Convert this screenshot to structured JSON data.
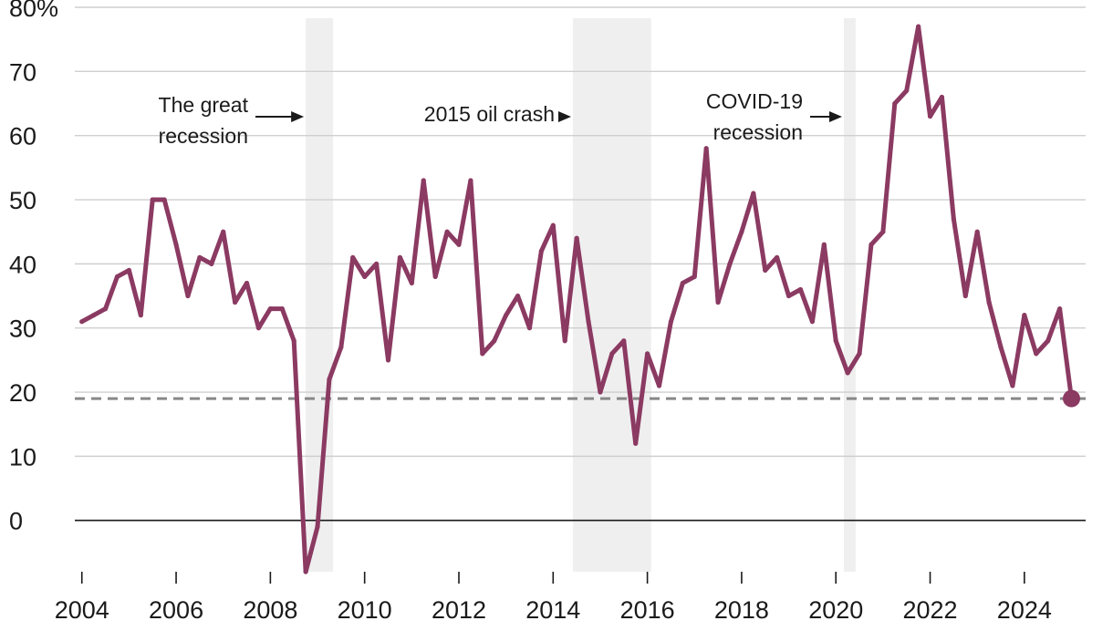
{
  "chart_data": {
    "type": "line",
    "title": "",
    "xlabel": "",
    "ylabel": "",
    "unit_suffix": "%",
    "xlim": [
      2003.85,
      2025.3
    ],
    "ylim": [
      -8,
      80
    ],
    "x_ticks": [
      2004,
      2006,
      2008,
      2010,
      2012,
      2014,
      2016,
      2018,
      2020,
      2022,
      2024
    ],
    "x_tick_labels": [
      "2004",
      "2006",
      "2008",
      "2010",
      "2012",
      "2014",
      "2016",
      "2018",
      "2020",
      "2022",
      "2024"
    ],
    "y_ticks": [
      0,
      10,
      20,
      30,
      40,
      50,
      60,
      70,
      80
    ],
    "y_tick_labels": [
      "0",
      "10",
      "20",
      "30",
      "40",
      "50",
      "60",
      "70",
      "80%"
    ],
    "grid": true,
    "reference_line": {
      "value": 19,
      "style": "dashed",
      "color": "#888888"
    },
    "recessions": [
      {
        "start": 2008.75,
        "end": 2009.33,
        "label_lines": [
          "The great",
          "recession"
        ]
      },
      {
        "start": 2014.42,
        "end": 2016.08,
        "label_lines": [
          "2015 oil crash"
        ]
      },
      {
        "start": 2020.17,
        "end": 2020.42,
        "label_lines": [
          "COVID-19",
          "recession"
        ]
      }
    ],
    "series": [
      {
        "name": "",
        "color": "#8b3a62",
        "points": [
          [
            2004.0,
            31
          ],
          [
            2004.25,
            32
          ],
          [
            2004.5,
            33
          ],
          [
            2004.75,
            38
          ],
          [
            2005.0,
            39
          ],
          [
            2005.25,
            32
          ],
          [
            2005.5,
            50
          ],
          [
            2005.75,
            50
          ],
          [
            2006.0,
            43
          ],
          [
            2006.25,
            35
          ],
          [
            2006.5,
            41
          ],
          [
            2006.75,
            40
          ],
          [
            2007.0,
            45
          ],
          [
            2007.25,
            34
          ],
          [
            2007.5,
            37
          ],
          [
            2007.75,
            30
          ],
          [
            2008.0,
            33
          ],
          [
            2008.25,
            33
          ],
          [
            2008.5,
            28
          ],
          [
            2008.75,
            -8
          ],
          [
            2009.0,
            -1
          ],
          [
            2009.25,
            22
          ],
          [
            2009.5,
            27
          ],
          [
            2009.75,
            41
          ],
          [
            2010.0,
            38
          ],
          [
            2010.25,
            40
          ],
          [
            2010.5,
            25
          ],
          [
            2010.75,
            41
          ],
          [
            2011.0,
            37
          ],
          [
            2011.25,
            53
          ],
          [
            2011.5,
            38
          ],
          [
            2011.75,
            45
          ],
          [
            2012.0,
            43
          ],
          [
            2012.25,
            53
          ],
          [
            2012.5,
            26
          ],
          [
            2012.75,
            28
          ],
          [
            2013.0,
            32
          ],
          [
            2013.25,
            35
          ],
          [
            2013.5,
            30
          ],
          [
            2013.75,
            42
          ],
          [
            2014.0,
            46
          ],
          [
            2014.25,
            28
          ],
          [
            2014.5,
            44
          ],
          [
            2014.75,
            31
          ],
          [
            2015.0,
            20
          ],
          [
            2015.25,
            26
          ],
          [
            2015.5,
            28
          ],
          [
            2015.75,
            12
          ],
          [
            2016.0,
            26
          ],
          [
            2016.25,
            21
          ],
          [
            2016.5,
            31
          ],
          [
            2016.75,
            37
          ],
          [
            2017.0,
            38
          ],
          [
            2017.25,
            58
          ],
          [
            2017.5,
            34
          ],
          [
            2017.75,
            40
          ],
          [
            2018.0,
            45
          ],
          [
            2018.25,
            51
          ],
          [
            2018.5,
            39
          ],
          [
            2018.75,
            41
          ],
          [
            2019.0,
            35
          ],
          [
            2019.25,
            36
          ],
          [
            2019.5,
            31
          ],
          [
            2019.75,
            43
          ],
          [
            2020.0,
            28
          ],
          [
            2020.25,
            23
          ],
          [
            2020.5,
            26
          ],
          [
            2020.75,
            43
          ],
          [
            2021.0,
            45
          ],
          [
            2021.25,
            65
          ],
          [
            2021.5,
            67
          ],
          [
            2021.75,
            77
          ],
          [
            2022.0,
            63
          ],
          [
            2022.25,
            66
          ],
          [
            2022.5,
            47
          ],
          [
            2022.75,
            35
          ],
          [
            2023.0,
            45
          ],
          [
            2023.25,
            34
          ],
          [
            2023.5,
            27
          ],
          [
            2023.75,
            21
          ],
          [
            2024.0,
            32
          ],
          [
            2024.25,
            26
          ],
          [
            2024.5,
            28
          ],
          [
            2024.75,
            33
          ],
          [
            2025.0,
            19
          ]
        ],
        "end_marker": true
      }
    ]
  }
}
